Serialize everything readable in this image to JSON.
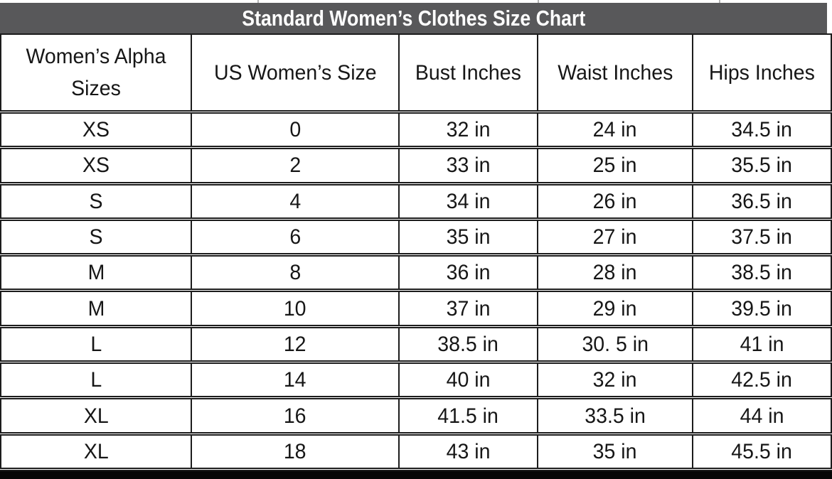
{
  "title_bar": {
    "title": "Standard Women’s Clothes Size Chart",
    "bg_color": "#58585a",
    "text_color": "#ffffff"
  },
  "chart_data": {
    "type": "table",
    "title": "Standard Women’s Clothes Size Chart",
    "columns": [
      "Women’s Alpha Sizes",
      "US Women’s Size",
      "Bust Inches",
      "Waist Inches",
      "Hips Inches"
    ],
    "rows": [
      [
        "XS",
        "0",
        "32 in",
        "24 in",
        "34.5 in"
      ],
      [
        "XS",
        "2",
        "33 in",
        "25 in",
        "35.5 in"
      ],
      [
        "S",
        "4",
        "34 in",
        "26 in",
        "36.5 in"
      ],
      [
        "S",
        "6",
        "35 in",
        "27 in",
        "37.5 in"
      ],
      [
        "M",
        "8",
        "36 in",
        "28 in",
        "38.5 in"
      ],
      [
        "M",
        "10",
        "37 in",
        "29 in",
        "39.5 in"
      ],
      [
        "L",
        "12",
        "38.5 in",
        "30. 5 in",
        "41 in"
      ],
      [
        "L",
        "14",
        "40 in",
        "32 in",
        "42.5 in"
      ],
      [
        "XL",
        "16",
        "41.5 in",
        "33.5 in",
        "44 in"
      ],
      [
        "XL",
        "18",
        "43 in",
        "35 in",
        "45.5 in"
      ]
    ],
    "layout_hints": {
      "grid": true,
      "header_row": true,
      "units": "inches"
    }
  },
  "colors": {
    "border": "#1c1c1c",
    "bottom_bar": "#070707",
    "cell_text": "#161616"
  }
}
